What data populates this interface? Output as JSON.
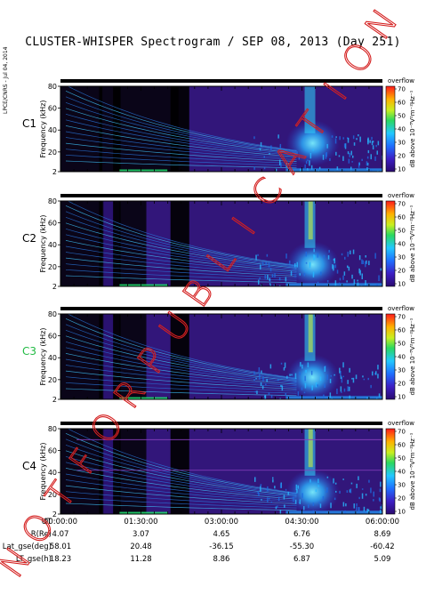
{
  "title": "CLUSTER-WHISPER Spectrogram / SEP 08, 2013 (Day 251)",
  "side_label": "LPCE/CNRS - Jul 04, 2014",
  "watermark_text": "NOT FOR PUBLICATION",
  "colors": {
    "background": "#000000",
    "low": "#3a1a8c",
    "watermark": "#d42020",
    "c3_label": "#22bb44"
  },
  "chart_data": {
    "type": "heatmap",
    "ylabel": "Frequency (kHz)",
    "ylim": [
      2,
      80
    ],
    "ytick_labels": [
      "80",
      "60",
      "40",
      "20",
      "2"
    ],
    "ytick_values": [
      80,
      60,
      40,
      20,
      2
    ],
    "xlim_hours": [
      0,
      6
    ],
    "colorbar": {
      "title": "overflow",
      "label": "dB above 10⁻⁸V²m⁻²Hz⁻¹",
      "range": [
        10,
        70
      ],
      "tick_labels": [
        "70",
        "60",
        "50",
        "40",
        "30",
        "20",
        "10"
      ],
      "tick_values": [
        70,
        60,
        50,
        40,
        30,
        20,
        10
      ]
    },
    "panels": [
      {
        "name": "C1",
        "label_color": "#000000"
      },
      {
        "name": "C2",
        "label_color": "#000000"
      },
      {
        "name": "C3",
        "label_color": "#22bb44"
      },
      {
        "name": "C4",
        "label_color": "#000000"
      }
    ]
  },
  "ephemeris": {
    "rows": [
      {
        "label": "UT",
        "values": [
          "00:00:00",
          "01:30:00",
          "03:00:00",
          "04:30:00",
          "06:00:00"
        ]
      },
      {
        "label": "R(Re)",
        "values": [
          "4.07",
          "3.07",
          "4.65",
          "6.76",
          "8.69"
        ]
      },
      {
        "label": "Lat_gse(deg)",
        "values": [
          "58.01",
          "20.48",
          "-36.15",
          "-55.30",
          "-60.42"
        ]
      },
      {
        "label": "LT_gse(h)",
        "values": [
          "18.23",
          "11.28",
          "8.86",
          "6.87",
          "5.09"
        ]
      }
    ]
  }
}
